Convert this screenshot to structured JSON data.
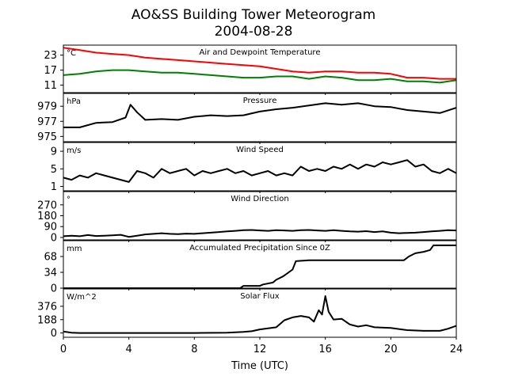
{
  "chart_data": {
    "type": "line",
    "title": "AO&SS Building Tower Meteorogram",
    "subtitle": "2004-08-28",
    "xlabel": "Time (UTC)",
    "xlim": [
      0,
      24
    ],
    "xticks": [
      0,
      4,
      8,
      12,
      16,
      20,
      24
    ],
    "panels": [
      {
        "label": "Air and Dewpoint Temperature",
        "unit": "°C",
        "ylim": [
          8,
          27
        ],
        "yticks": [
          11,
          17,
          23
        ],
        "series": [
          {
            "color": "#ff0000",
            "x": [
              0,
              1,
              2,
              3,
              4,
              5,
              6,
              7,
              8,
              9,
              10,
              11,
              12,
              13,
              14,
              15,
              16,
              17,
              18,
              19,
              20,
              21,
              22,
              23,
              24
            ],
            "y": [
              26,
              25,
              24,
              23.5,
              23,
              22,
              21.5,
              21,
              20.5,
              20,
              19.5,
              19,
              18.5,
              17.5,
              16.5,
              16,
              16.5,
              16.5,
              16,
              16,
              15.5,
              14,
              14,
              13.5,
              13.5
            ]
          },
          {
            "color": "#008000",
            "x": [
              0,
              1,
              2,
              3,
              4,
              5,
              6,
              7,
              8,
              9,
              10,
              11,
              12,
              13,
              14,
              15,
              16,
              17,
              18,
              19,
              20,
              21,
              22,
              23,
              24
            ],
            "y": [
              15,
              15.5,
              16.5,
              17,
              17,
              16.5,
              16,
              16,
              15.5,
              15,
              14.5,
              14,
              14,
              14.5,
              14.5,
              13.5,
              14.5,
              14,
              13,
              13,
              13.5,
              12.5,
              12.5,
              12,
              13
            ]
          }
        ]
      },
      {
        "label": "Pressure",
        "unit": "hPa",
        "ylim": [
          974.3,
          980.7
        ],
        "yticks": [
          975,
          977,
          979
        ],
        "series": [
          {
            "color": "#000000",
            "x": [
              0,
              1,
              2,
              3,
              3.8,
              4.1,
              4.5,
              5,
              6,
              7,
              8,
              9,
              10,
              11,
              12,
              13,
              14,
              15,
              16,
              17,
              18,
              19,
              20,
              21,
              22,
              23,
              24
            ],
            "y": [
              976.2,
              976.2,
              976.8,
              976.9,
              977.5,
              979.2,
              978.2,
              977.2,
              977.3,
              977.2,
              977.6,
              977.8,
              977.7,
              977.8,
              978.3,
              978.6,
              978.8,
              979.1,
              979.4,
              979.2,
              979.4,
              979.0,
              978.9,
              978.5,
              978.3,
              978.1,
              978.8
            ]
          }
        ]
      },
      {
        "label": "Wind Speed",
        "unit": "m/s",
        "ylim": [
          0,
          11
        ],
        "yticks": [
          1,
          5,
          9
        ],
        "series": [
          {
            "color": "#000000",
            "x": [
              0,
              0.5,
              1,
              1.5,
              2,
              2.5,
              3,
              3.5,
              4,
              4.5,
              5,
              5.5,
              6,
              6.5,
              7,
              7.5,
              8,
              8.5,
              9,
              9.5,
              10,
              10.5,
              11,
              11.5,
              12,
              12.5,
              13,
              13.5,
              14,
              14.5,
              15,
              15.5,
              16,
              16.5,
              17,
              17.5,
              18,
              18.5,
              19,
              19.5,
              20,
              20.5,
              21,
              21.5,
              22,
              22.5,
              23,
              23.5,
              24
            ],
            "y": [
              3,
              2.5,
              3.5,
              3,
              4,
              3.5,
              3,
              2.5,
              2,
              4.5,
              4,
              3,
              5,
              4,
              4.5,
              5,
              3.5,
              4.5,
              4,
              4.5,
              5,
              4,
              4.5,
              3.5,
              4,
              4.5,
              3.5,
              4,
              3.5,
              5.5,
              4.5,
              5,
              4.5,
              5.5,
              5,
              6,
              5,
              6,
              5.5,
              6.5,
              6,
              6.5,
              7,
              5.5,
              6,
              4.5,
              4,
              5,
              4
            ]
          }
        ]
      },
      {
        "label": "Wind Direction",
        "unit": "°",
        "ylim": [
          -20,
          380
        ],
        "yticks": [
          0,
          90,
          180,
          270
        ],
        "series": [
          {
            "color": "#000000",
            "x": [
              0,
              0.5,
              1,
              1.5,
              2,
              2.5,
              3,
              3.5,
              4,
              4.5,
              5,
              5.5,
              6,
              6.5,
              7,
              7.5,
              8,
              8.5,
              9,
              9.5,
              10,
              10.5,
              11,
              11.5,
              12,
              12.5,
              13,
              13.5,
              14,
              14.5,
              15,
              15.5,
              16,
              16.5,
              17,
              17.5,
              18,
              18.5,
              19,
              19.5,
              20,
              20.5,
              21,
              21.5,
              22,
              22.5,
              23,
              23.5,
              24
            ],
            "y": [
              10,
              15,
              10,
              20,
              12,
              15,
              18,
              22,
              5,
              15,
              25,
              30,
              35,
              30,
              28,
              32,
              30,
              35,
              40,
              45,
              50,
              55,
              60,
              62,
              58,
              55,
              60,
              58,
              55,
              60,
              62,
              58,
              55,
              60,
              55,
              50,
              48,
              52,
              45,
              50,
              40,
              35,
              38,
              40,
              45,
              50,
              55,
              60,
              58
            ]
          }
        ]
      },
      {
        "label": "Accumulated Precipitation Since 0Z",
        "unit": "mm",
        "ylim": [
          0,
          102
        ],
        "yticks": [
          0,
          34,
          68
        ],
        "series": [
          {
            "color": "#000000",
            "x": [
              0,
              10.8,
              11,
              12,
              12.2,
              12.8,
              13,
              13.4,
              13.6,
              14,
              14.2,
              15,
              16,
              17,
              18,
              19,
              20,
              20.8,
              21.1,
              21.5,
              22,
              22.4,
              22.6,
              23,
              24
            ],
            "y": [
              0,
              0,
              5,
              5,
              8,
              12,
              18,
              25,
              30,
              40,
              58,
              60,
              60,
              60,
              60,
              60,
              60,
              60,
              68,
              75,
              78,
              82,
              92,
              92,
              92
            ]
          }
        ]
      },
      {
        "label": "Solar Flux",
        "unit": "W/m^2",
        "ylim": [
          -60,
          620
        ],
        "yticks": [
          0,
          188,
          376
        ],
        "series": [
          {
            "color": "#000000",
            "x": [
              0,
              0.5,
              1,
              2,
              4,
              6,
              8,
              10,
              11,
              11.5,
              12,
              13,
              13.5,
              14,
              14.5,
              15,
              15.3,
              15.6,
              15.8,
              16,
              16.2,
              16.5,
              17,
              17.5,
              18,
              18.5,
              19,
              20,
              21,
              22,
              23,
              23.5,
              24
            ],
            "y": [
              20,
              5,
              0,
              0,
              0,
              0,
              0,
              5,
              15,
              25,
              50,
              80,
              180,
              220,
              240,
              220,
              160,
              320,
              260,
              520,
              300,
              190,
              200,
              120,
              90,
              110,
              80,
              70,
              40,
              30,
              30,
              60,
              100
            ]
          }
        ]
      }
    ],
    "grid": false,
    "legend": "none"
  }
}
